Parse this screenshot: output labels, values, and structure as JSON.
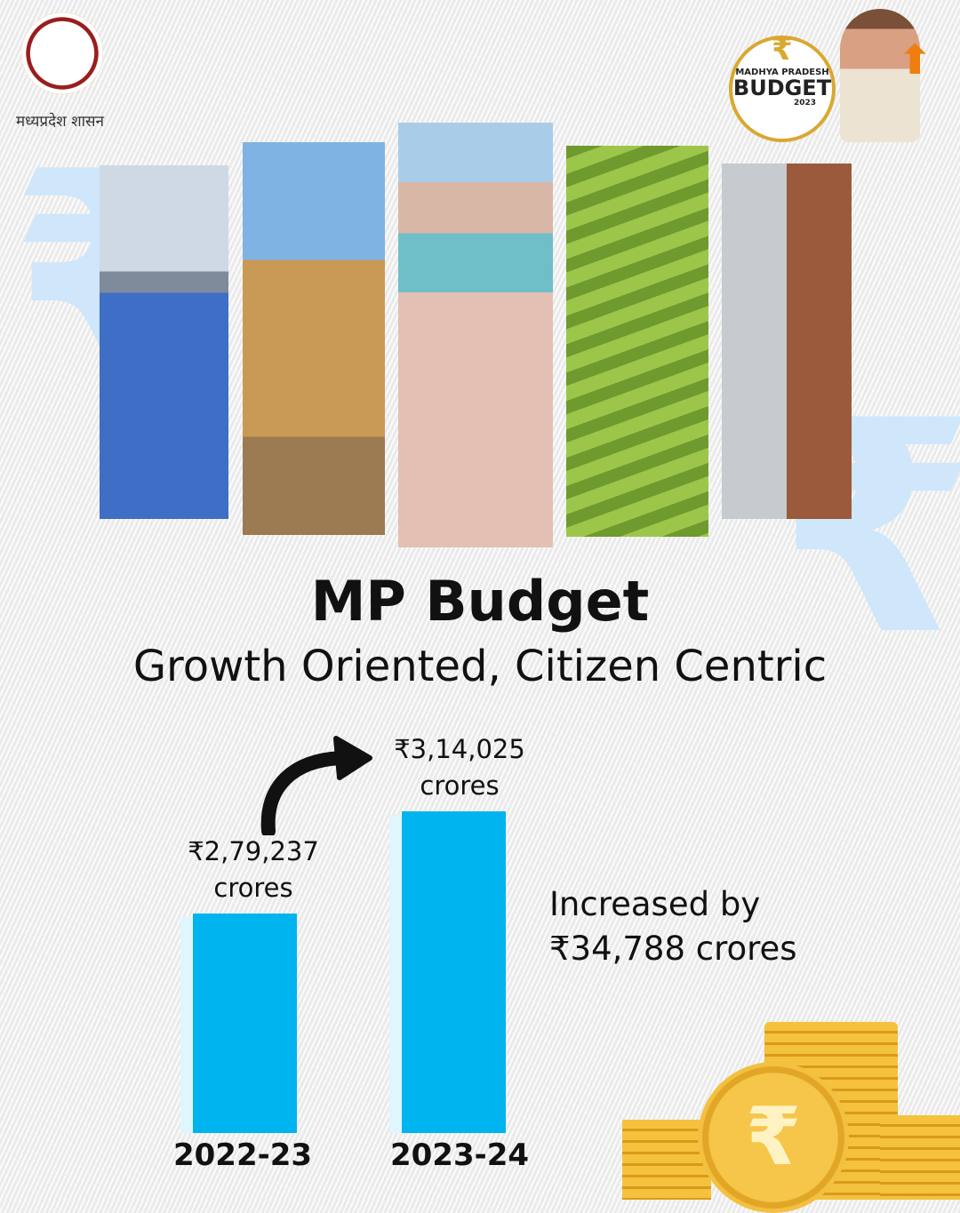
{
  "header": {
    "logo_text": "मध्यप्रदेश शासन",
    "badge": {
      "line1": "MADHYA PRADESH",
      "line2": "BUDGET",
      "year": "2023"
    }
  },
  "photos": [
    "solar-panels",
    "cheetah",
    "riverfront-ghat",
    "tea-plantation",
    "modern-building"
  ],
  "title": "MP Budget",
  "subtitle": "Growth Oriented, Citizen Centric",
  "note": {
    "line1": "Increased by",
    "line2": "₹34,788 crores"
  },
  "colors": {
    "bar": "#00b4f0",
    "accent_bg": "#cfe6fb",
    "gold": "#e6a817"
  },
  "chart_data": {
    "type": "bar",
    "categories": [
      "2022-23",
      "2023-24"
    ],
    "values": [
      279237,
      314025
    ],
    "value_labels": [
      {
        "amount": "₹2,79,237",
        "unit": "crores"
      },
      {
        "amount": "₹3,14,025",
        "unit": "crores"
      }
    ],
    "unit": "crores (₹)",
    "ylim": [
      204500,
      330000
    ],
    "grid": false
  }
}
